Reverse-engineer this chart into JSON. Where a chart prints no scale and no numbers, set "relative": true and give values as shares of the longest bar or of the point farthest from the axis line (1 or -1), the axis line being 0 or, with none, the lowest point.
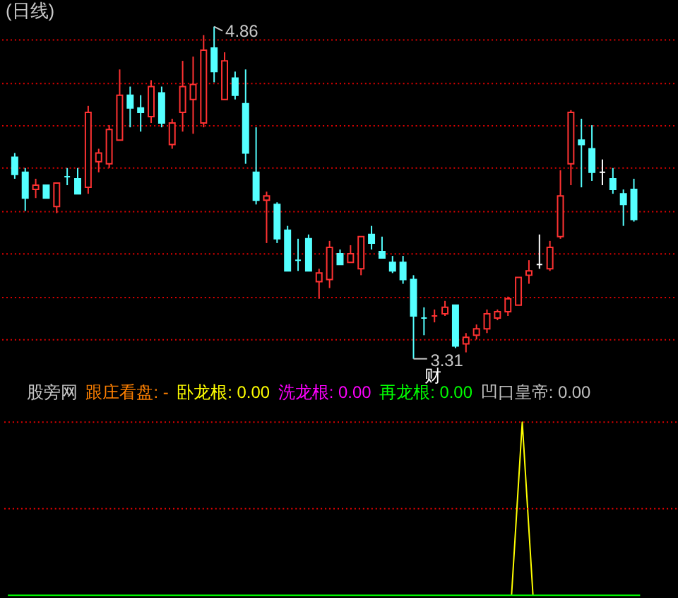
{
  "chart_data": [
    {
      "type": "candlestick",
      "title": "(日线)",
      "categories": [
        null,
        null,
        null,
        null,
        null,
        null,
        null,
        null,
        null,
        null,
        null,
        null,
        null,
        null,
        null,
        null,
        null,
        null,
        null,
        null,
        null,
        null,
        null,
        null,
        null,
        null,
        null,
        null,
        null,
        null,
        null,
        null,
        null,
        null,
        null,
        null,
        null,
        null,
        null,
        null,
        null,
        null,
        null,
        null,
        null,
        null,
        null,
        null,
        null,
        null,
        null,
        null,
        null,
        null,
        null,
        null,
        null,
        null,
        null,
        null
      ],
      "ohlc": [
        [
          4.25,
          4.27,
          4.15,
          4.17
        ],
        [
          4.18,
          4.2,
          4.0,
          4.06
        ],
        [
          4.1,
          4.15,
          4.06,
          4.12
        ],
        [
          4.12,
          4.12,
          4.06,
          4.06
        ],
        [
          4.02,
          4.13,
          3.99,
          4.13
        ],
        [
          4.16,
          4.2,
          4.12,
          4.16
        ],
        [
          4.15,
          4.2,
          4.08,
          4.08
        ],
        [
          4.11,
          4.49,
          4.08,
          4.46
        ],
        [
          4.23,
          4.29,
          4.18,
          4.27
        ],
        [
          4.22,
          4.4,
          4.2,
          4.38
        ],
        [
          4.33,
          4.66,
          4.33,
          4.54
        ],
        [
          4.54,
          4.58,
          4.39,
          4.48
        ],
        [
          4.48,
          4.54,
          4.37,
          4.46
        ],
        [
          4.44,
          4.61,
          4.41,
          4.58
        ],
        [
          4.55,
          4.58,
          4.39,
          4.41
        ],
        [
          4.31,
          4.43,
          4.29,
          4.41
        ],
        [
          4.46,
          4.7,
          4.37,
          4.58
        ],
        [
          4.52,
          4.72,
          4.36,
          4.59
        ],
        [
          4.41,
          4.82,
          4.39,
          4.75
        ],
        [
          4.76,
          4.86,
          4.6,
          4.65
        ],
        [
          4.52,
          4.74,
          4.52,
          4.7
        ],
        [
          4.62,
          4.65,
          4.52,
          4.54
        ],
        [
          4.5,
          4.66,
          4.22,
          4.27
        ],
        [
          4.18,
          4.39,
          4.03,
          4.05
        ],
        [
          4.05,
          4.09,
          3.85,
          4.07
        ],
        [
          4.03,
          4.04,
          3.85,
          3.87
        ],
        [
          3.91,
          3.93,
          3.72,
          3.72
        ],
        [
          3.77,
          3.87,
          3.72,
          3.77
        ],
        [
          3.87,
          3.89,
          3.72,
          3.72
        ],
        [
          3.67,
          3.73,
          3.59,
          3.71
        ],
        [
          3.68,
          3.86,
          3.64,
          3.83
        ],
        [
          3.8,
          3.82,
          3.75,
          3.75
        ],
        [
          3.76,
          3.84,
          3.76,
          3.8
        ],
        [
          3.73,
          3.88,
          3.7,
          3.88
        ],
        [
          3.89,
          3.93,
          3.82,
          3.85
        ],
        [
          3.81,
          3.88,
          3.78,
          3.78
        ],
        [
          3.76,
          3.79,
          3.71,
          3.72
        ],
        [
          3.76,
          3.79,
          3.66,
          3.68
        ],
        [
          3.68,
          3.7,
          3.31,
          3.51
        ],
        [
          3.5,
          3.55,
          3.42,
          3.5
        ],
        [
          3.51,
          3.54,
          3.48,
          3.51
        ],
        [
          3.52,
          3.58,
          3.51,
          3.55
        ],
        [
          3.56,
          3.56,
          3.36,
          3.37
        ],
        [
          3.38,
          3.43,
          3.34,
          3.41
        ],
        [
          3.42,
          3.47,
          3.4,
          3.45
        ],
        [
          3.45,
          3.54,
          3.43,
          3.52
        ],
        [
          3.5,
          3.54,
          3.49,
          3.53
        ],
        [
          3.53,
          3.6,
          3.51,
          3.59
        ],
        [
          3.56,
          3.69,
          3.56,
          3.69
        ],
        [
          3.7,
          3.77,
          3.66,
          3.72
        ],
        [
          3.75,
          3.89,
          3.73,
          3.75
        ],
        [
          3.73,
          3.86,
          3.72,
          3.83
        ],
        [
          3.88,
          4.19,
          3.87,
          4.07
        ],
        [
          4.22,
          4.47,
          4.12,
          4.46
        ],
        [
          4.33,
          4.43,
          4.11,
          4.31
        ],
        [
          4.29,
          4.4,
          4.14,
          4.18
        ],
        [
          4.18,
          4.24,
          4.12,
          4.18
        ],
        [
          4.15,
          4.2,
          4.08,
          4.1
        ],
        [
          4.08,
          4.1,
          3.93,
          4.03
        ],
        [
          4.1,
          4.15,
          3.95,
          3.96
        ]
      ],
      "colors": [
        "#54ffff",
        "#54ffff",
        "#ff3232",
        "#54ffff",
        "#ff3232",
        "#54ffff",
        "#54ffff",
        "#ff3232",
        "#ff3232",
        "#ff3232",
        "#ff3232",
        "#54ffff",
        "#54ffff",
        "#ff3232",
        "#54ffff",
        "#ff3232",
        "#ff3232",
        "#ff3232",
        "#ff3232",
        "#54ffff",
        "#ff3232",
        "#54ffff",
        "#54ffff",
        "#54ffff",
        "#ff3232",
        "#54ffff",
        "#54ffff",
        "#54ffff",
        "#54ffff",
        "#ff3232",
        "#ff3232",
        "#54ffff",
        "#ff3232",
        "#ff3232",
        "#54ffff",
        "#54ffff",
        "#54ffff",
        "#54ffff",
        "#54ffff",
        "#54ffff",
        "#ff3232",
        "#ff3232",
        "#54ffff",
        "#ff3232",
        "#ff3232",
        "#ff3232",
        "#ff3232",
        "#ff3232",
        "#ff3232",
        "#ff3232",
        "#ffffff",
        "#ff3232",
        "#ff3232",
        "#ff3232",
        "#54ffff",
        "#54ffff",
        "#ffffff",
        "#54ffff",
        "#54ffff",
        "#54ffff"
      ],
      "yticks": [
        {
          "value": 3.4,
          "label": null
        },
        {
          "value": 3.6,
          "label": null
        },
        {
          "value": 3.8,
          "label": null
        },
        {
          "value": 4.0,
          "label": null
        },
        {
          "value": 4.2,
          "label": null
        },
        {
          "value": 4.4,
          "label": null
        },
        {
          "value": 4.6,
          "label": null
        },
        {
          "value": 4.8,
          "label": null
        }
      ],
      "tick_labels": false,
      "grid": "y",
      "annotations": [
        "4.86",
        "3.31",
        "财"
      ]
    },
    {
      "type": "line",
      "title": "股旁网",
      "categories": [
        null,
        null,
        null,
        null,
        null,
        null,
        null,
        null,
        null,
        null,
        null,
        null,
        null,
        null,
        null,
        null,
        null,
        null,
        null,
        null,
        null,
        null,
        null,
        null,
        null,
        null,
        null,
        null,
        null,
        null,
        null,
        null,
        null,
        null,
        null,
        null,
        null,
        null,
        null,
        null,
        null,
        null,
        null,
        null,
        null,
        null,
        null,
        null,
        null,
        null,
        null,
        null,
        null,
        null,
        null,
        null,
        null,
        null,
        null,
        null
      ],
      "relative": true,
      "legend": "top left",
      "ref_lines": [
        {
          "axis": "y",
          "value": 0.5,
          "color": "#e00000",
          "line_style": "dotted"
        },
        {
          "axis": "y",
          "value": 1,
          "color": "#e00000",
          "line_style": "dotted"
        }
      ],
      "series": [
        {
          "name": "跟庄看盘: -",
          "color": "#ff8000",
          "values": [
            null,
            null,
            null,
            null,
            null,
            null,
            null,
            null,
            null,
            null,
            null,
            null,
            null,
            null,
            null,
            null,
            null,
            null,
            null,
            null,
            null,
            null,
            null,
            null,
            null,
            null,
            null,
            null,
            null,
            null,
            null,
            null,
            null,
            null,
            null,
            null,
            null,
            null,
            null,
            null,
            null,
            null,
            null,
            null,
            null,
            null,
            null,
            null,
            null,
            null,
            null,
            null,
            null,
            null,
            null,
            null,
            null,
            null,
            null,
            null
          ]
        },
        {
          "name": "卧龙根: 0.00",
          "color": "#ffff00",
          "values": [
            null,
            null,
            null,
            null,
            null,
            null,
            null,
            null,
            null,
            null,
            null,
            null,
            null,
            null,
            null,
            null,
            null,
            null,
            null,
            null,
            null,
            null,
            null,
            null,
            null,
            null,
            null,
            null,
            null,
            null,
            null,
            null,
            null,
            null,
            null,
            null,
            null,
            null,
            null,
            null,
            null,
            null,
            null,
            null,
            null,
            null,
            null,
            0,
            1,
            0,
            null,
            null,
            null,
            null,
            null,
            null,
            null,
            null,
            null,
            null
          ]
        },
        {
          "name": "洗龙根: 0.00",
          "color": "#ff00ff",
          "values": [
            null,
            null,
            null,
            null,
            null,
            null,
            null,
            null,
            null,
            null,
            null,
            null,
            null,
            null,
            null,
            null,
            null,
            null,
            null,
            null,
            null,
            null,
            null,
            null,
            null,
            null,
            null,
            null,
            null,
            null,
            null,
            null,
            null,
            null,
            null,
            null,
            null,
            null,
            null,
            null,
            null,
            null,
            null,
            null,
            null,
            null,
            null,
            null,
            null,
            null,
            null,
            null,
            null,
            null,
            null,
            null,
            null,
            null,
            null,
            null
          ]
        },
        {
          "name": "再龙根: 0.00",
          "color": "#00ff00",
          "values": [
            0,
            0,
            0,
            0,
            0,
            0,
            0,
            0,
            0,
            0,
            0,
            0,
            0,
            0,
            0,
            0,
            0,
            0,
            0,
            0,
            0,
            0,
            0,
            0,
            0,
            0,
            0,
            0,
            0,
            0,
            0,
            0,
            0,
            0,
            0,
            0,
            0,
            0,
            0,
            0,
            0,
            0,
            0,
            0,
            0,
            0,
            0,
            0,
            0,
            0,
            0,
            0,
            0,
            0,
            0,
            0,
            0,
            0,
            0,
            0
          ]
        },
        {
          "name": "凹口皇帝: 0.00",
          "color": "#c0c0c0",
          "values": [
            null,
            null,
            null,
            null,
            null,
            null,
            null,
            null,
            null,
            null,
            null,
            null,
            null,
            null,
            null,
            null,
            null,
            null,
            null,
            null,
            null,
            null,
            null,
            null,
            null,
            null,
            null,
            null,
            null,
            null,
            null,
            null,
            null,
            null,
            null,
            null,
            null,
            null,
            null,
            null,
            null,
            null,
            null,
            null,
            null,
            null,
            null,
            null,
            null,
            null,
            null,
            null,
            null,
            null,
            null,
            null,
            null,
            null,
            null,
            null
          ]
        }
      ]
    }
  ]
}
